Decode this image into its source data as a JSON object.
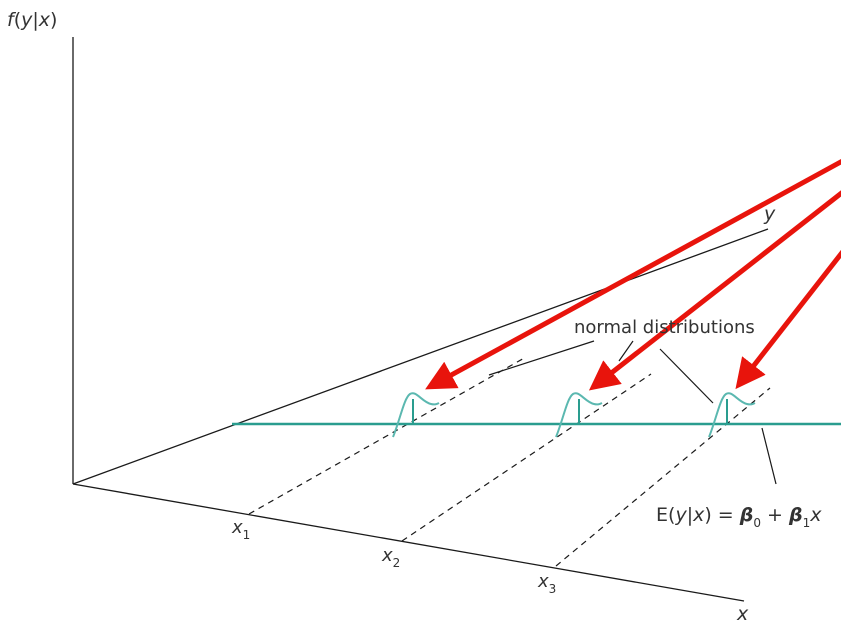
{
  "labels": {
    "f": "f",
    "y": "y",
    "x": "x",
    "bar": "|",
    "open": "(",
    "close": ")",
    "E": "E",
    "eq": " = ",
    "plus": " + ",
    "beta": "β",
    "sub0": "0",
    "sub1": "1",
    "sub2": "2",
    "sub3": "3",
    "normal_distributions": "normal distributions"
  },
  "colors": {
    "axis": "#1a1a1a",
    "regression_line": "#2a9d8f",
    "curve": "#5bb8b0",
    "arrow": "#e8140c",
    "text": "#333333"
  }
}
